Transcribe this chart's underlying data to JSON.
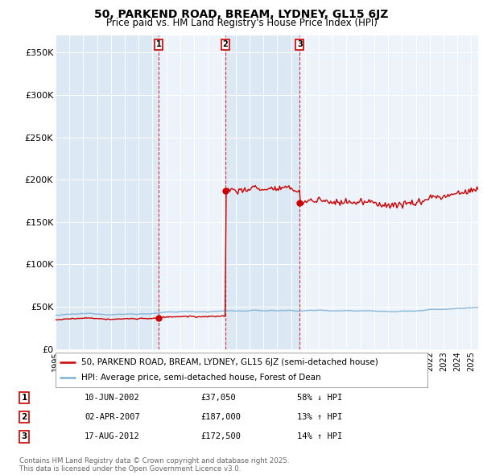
{
  "title": "50, PARKEND ROAD, BREAM, LYDNEY, GL15 6JZ",
  "subtitle": "Price paid vs. HM Land Registry's House Price Index (HPI)",
  "title_fontsize": 10,
  "subtitle_fontsize": 8.5,
  "ylabel_ticks": [
    "£0",
    "£50K",
    "£100K",
    "£150K",
    "£200K",
    "£250K",
    "£300K",
    "£350K"
  ],
  "ytick_vals": [
    0,
    50000,
    100000,
    150000,
    200000,
    250000,
    300000,
    350000
  ],
  "ylim": [
    0,
    370000
  ],
  "background_color": "#ffffff",
  "plot_bg_color": "#dce9f5",
  "alt_band_color": "#edf3fa",
  "hpi_line_color": "#7eb0d5",
  "price_line_color": "#cc0000",
  "dashed_line_color": "#cc0000",
  "grid_color": "#ffffff",
  "transactions": [
    {
      "num": 1,
      "date": "10-JUN-2002",
      "price": 37050,
      "pct": "58%",
      "dir": "↓",
      "year": 2002.44
    },
    {
      "num": 2,
      "date": "02-APR-2007",
      "price": 187000,
      "pct": "13%",
      "dir": "↑",
      "year": 2007.25
    },
    {
      "num": 3,
      "date": "17-AUG-2012",
      "price": 172500,
      "pct": "14%",
      "dir": "↑",
      "year": 2012.62
    }
  ],
  "footer": "Contains HM Land Registry data © Crown copyright and database right 2025.\nThis data is licensed under the Open Government Licence v3.0.",
  "legend_line1": "50, PARKEND ROAD, BREAM, LYDNEY, GL15 6JZ (semi-detached house)",
  "legend_line2": "HPI: Average price, semi-detached house, Forest of Dean",
  "xlim_min": 1995.0,
  "xlim_max": 2025.5
}
